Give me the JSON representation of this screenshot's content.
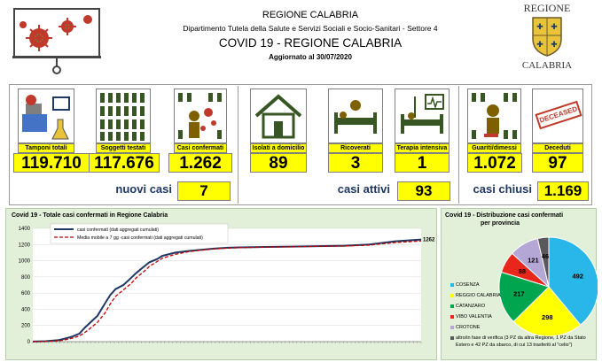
{
  "header": {
    "region_title": "REGIONE CALABRIA",
    "department": "Dipartimento Tutela della Salute e Servizi Sociali e Socio-Sanitari - Settore 4",
    "main_title": "COVID 19 - REGIONE CALABRIA",
    "updated": "Aggiornato al  30/07/2020",
    "logo_top": "REGIONE",
    "logo_bottom": "CALABRIA"
  },
  "stats": {
    "tamponi": {
      "label": "Tamponi totali",
      "value": "119.710"
    },
    "soggetti": {
      "label": "Soggetti testati",
      "value": "117.676"
    },
    "confermati": {
      "label": "Casi confermati",
      "value": "1.262"
    },
    "isolati": {
      "label": "Isolati a domicilio",
      "value": "89"
    },
    "ricoverati": {
      "label": "Ricoverati",
      "value": "3"
    },
    "terapia": {
      "label": "Terapia intensiva",
      "value": "1"
    },
    "guariti": {
      "label": "Guariti/dimessi",
      "value": "1.072"
    },
    "deceduti": {
      "label": "Deceduti",
      "value": "97"
    },
    "deceased_stamp": "DECEASED"
  },
  "summary": {
    "nuovi_label": "nuovi casi",
    "nuovi_value": "7",
    "attivi_label": "casi attivi",
    "attivi_value": "93",
    "chiusi_label": "casi chiusi",
    "chiusi_value": "1.169"
  },
  "colors": {
    "highlight": "#ffff00",
    "chart_bg": "#e2efd9",
    "title_blue": "#1f3864",
    "line_main": "#1f3864",
    "line_ma": "#c00000"
  },
  "chart_data": [
    {
      "type": "line",
      "title": "Covid 19 - Totale casi confermati in Regione Calabria",
      "ylim": [
        0,
        1400
      ],
      "yticks": [
        "0",
        "200",
        "400",
        "600",
        "800",
        "1000",
        "1200",
        "1400"
      ],
      "end_label": "1262",
      "series": [
        {
          "name": "casi confermati (dati aggregati cumulati)",
          "color": "#1f3864",
          "x": [
            0,
            5,
            10,
            12,
            15,
            18,
            20,
            22,
            25,
            28,
            30,
            32,
            35,
            38,
            40,
            43,
            45,
            48,
            50,
            55,
            60,
            65,
            70,
            75,
            80,
            90,
            100,
            110,
            120,
            130,
            140,
            150
          ],
          "values": [
            1,
            5,
            20,
            35,
            60,
            100,
            170,
            230,
            320,
            480,
            580,
            650,
            700,
            790,
            850,
            930,
            980,
            1020,
            1060,
            1100,
            1120,
            1135,
            1150,
            1160,
            1165,
            1170,
            1175,
            1180,
            1185,
            1200,
            1240,
            1262
          ]
        },
        {
          "name": "Media mobile a 7 gg -casi confermati (dati aggregati cumulati)",
          "color": "#c00000",
          "x": [
            0,
            5,
            10,
            12,
            15,
            18,
            20,
            22,
            25,
            28,
            30,
            32,
            35,
            38,
            40,
            43,
            45,
            48,
            50,
            55,
            60,
            65,
            70,
            75,
            80,
            90,
            100,
            110,
            120,
            130,
            140,
            150
          ],
          "values": [
            1,
            3,
            10,
            20,
            40,
            70,
            110,
            160,
            240,
            360,
            470,
            560,
            640,
            720,
            790,
            870,
            930,
            990,
            1030,
            1080,
            1110,
            1130,
            1145,
            1155,
            1162,
            1168,
            1173,
            1178,
            1182,
            1192,
            1225,
            1245
          ]
        }
      ]
    },
    {
      "type": "pie",
      "title": "Covid 19 - Distribuzione casi confermati per provincia",
      "slices": [
        {
          "name": "COSENZA",
          "value": 492,
          "color": "#29b6e8"
        },
        {
          "name": "REGGIO CALABRIA",
          "value": 298,
          "color": "#ffff00"
        },
        {
          "name": "CATANZARO",
          "value": 217,
          "color": "#00a550"
        },
        {
          "name": "VIBO VALENTIA",
          "value": 88,
          "color": "#e8261c"
        },
        {
          "name": "CROTONE",
          "value": 121,
          "color": "#b4a7d6"
        },
        {
          "name": "altro/in fase di verifica (3 PZ da altra Regione, 1 PZ da Stato Estero e 42 PZ da sbarco, di cui 13 trasferiti al \"celio\")",
          "value": 46,
          "color": "#595959"
        }
      ]
    }
  ],
  "legend_other_line1": "altro/in fase di verifica (3 PZ da altra Regione, 1 PZ da Stato",
  "legend_other_line2": "Estero e 42 PZ da sbarco, di cui 13 trasferiti al \"celio\")"
}
